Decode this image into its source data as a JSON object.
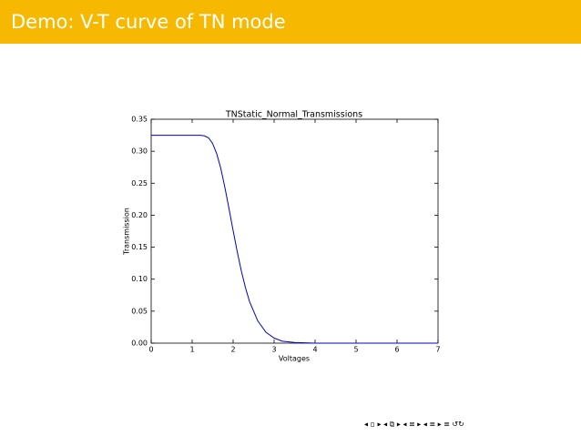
{
  "header": {
    "title": "Demo: V-T curve of TN mode"
  },
  "chart_data": {
    "type": "line",
    "title": "TNStatic_Normal_Transmissions",
    "x_label": "Voltages",
    "y_label": "Transmission",
    "x": [
      0,
      0.5,
      1,
      1.2,
      1.3,
      1.4,
      1.5,
      1.6,
      1.7,
      1.8,
      1.9,
      2.0,
      2.1,
      2.2,
      2.3,
      2.4,
      2.6,
      2.8,
      3.0,
      3.2,
      3.5,
      4,
      5,
      6,
      7
    ],
    "series": [
      {
        "color": "#0000cc",
        "values": [
          0.325,
          0.325,
          0.325,
          0.325,
          0.324,
          0.321,
          0.312,
          0.296,
          0.273,
          0.243,
          0.21,
          0.176,
          0.143,
          0.113,
          0.087,
          0.065,
          0.035,
          0.017,
          0.008,
          0.003,
          0.001,
          0,
          0,
          0,
          0
        ]
      }
    ],
    "xlim": [
      0,
      7
    ],
    "ylim": [
      0,
      0.35
    ],
    "xticks": [
      0,
      1,
      2,
      3,
      4,
      5,
      6,
      7
    ],
    "yticks": [
      {
        "value": 0,
        "label": "0.00"
      },
      0.05,
      {
        "value": 0.1,
        "label": "0.10"
      },
      0.15,
      {
        "value": 0.2,
        "label": "0.20"
      },
      0.25,
      {
        "value": 0.3,
        "label": "0.30"
      },
      0.35
    ]
  }
}
